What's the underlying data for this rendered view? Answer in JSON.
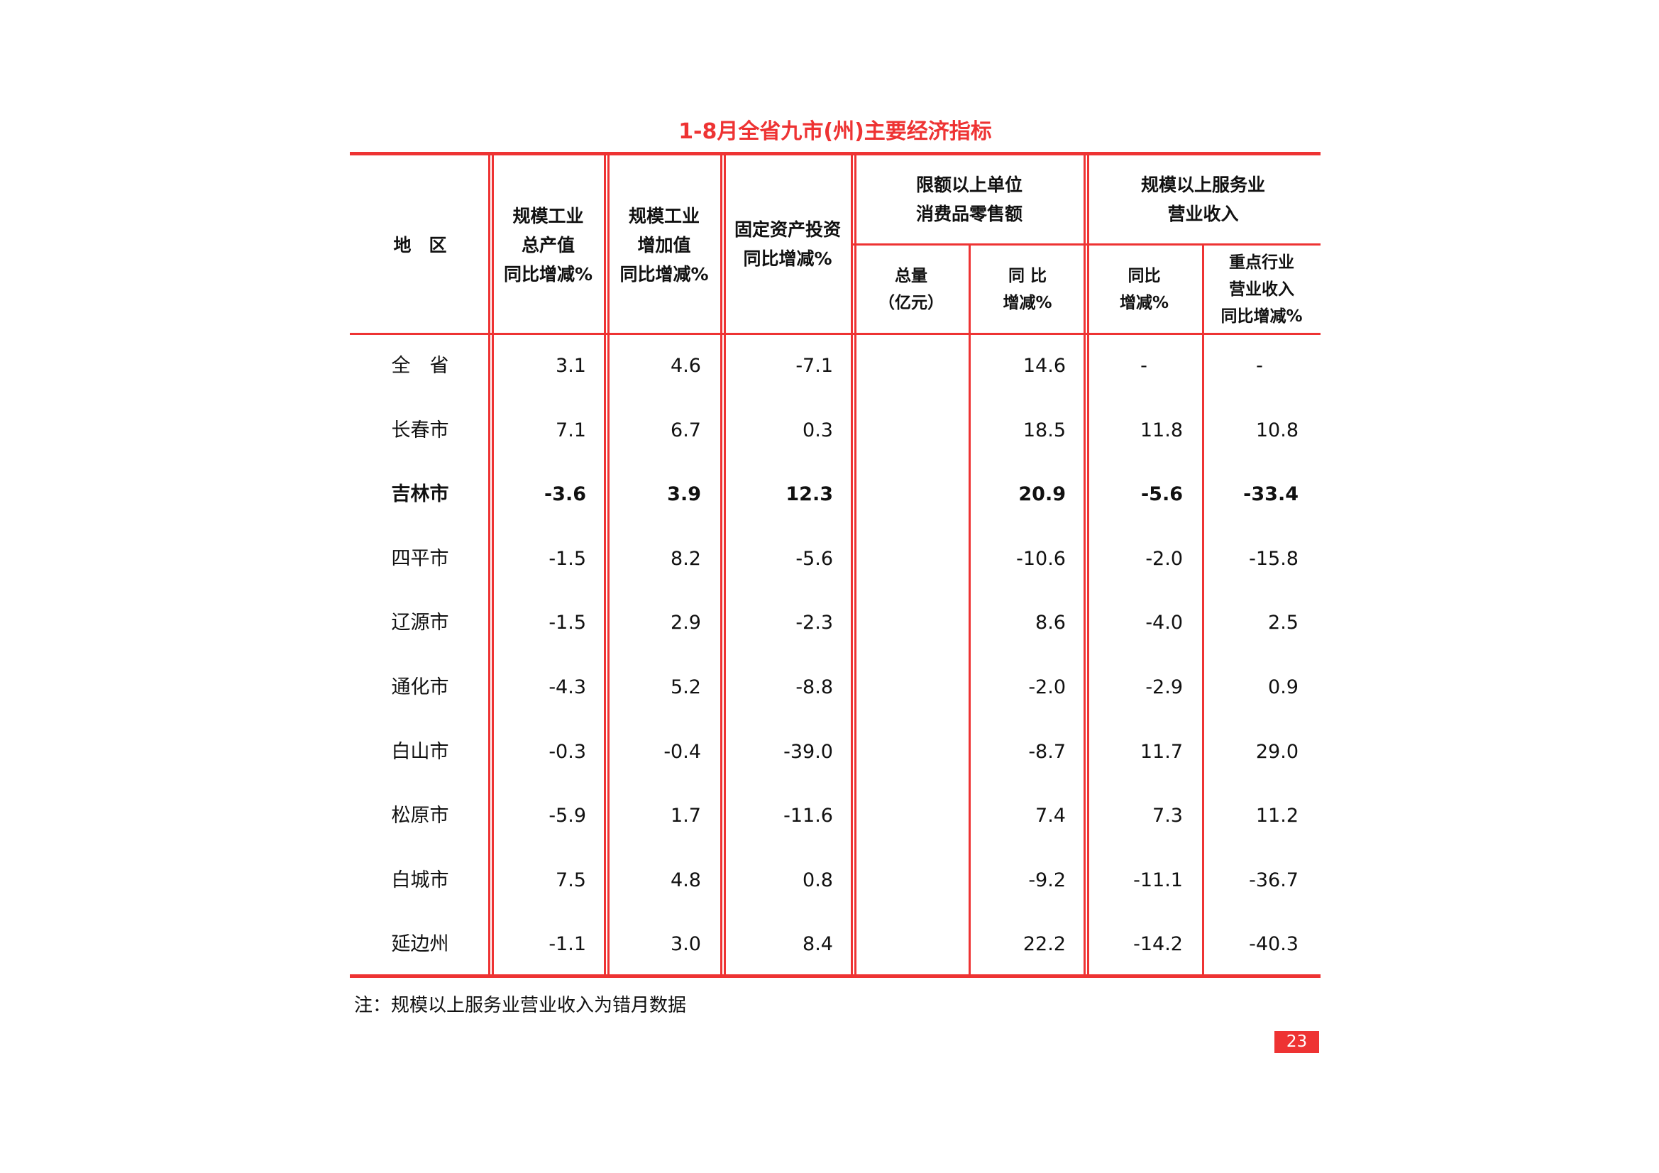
{
  "title": "1-8月全省九市(州)主要经济指标",
  "accent_color": "#ee3333",
  "headers": {
    "region": "地　区",
    "industrial_output": [
      "规模工业",
      "总产值",
      "同比增减%"
    ],
    "industrial_value_added": [
      "规模工业",
      "增加值",
      "同比增减%"
    ],
    "fixed_asset_investment": [
      "固定资产投资",
      "同比增减%"
    ],
    "retail_group": [
      "限额以上单位",
      "消费品零售额"
    ],
    "retail_total": [
      "总量",
      "（亿元）"
    ],
    "retail_yoy": [
      "同 比",
      "增减%"
    ],
    "service_group": [
      "规模以上服务业",
      "营业收入"
    ],
    "service_yoy": [
      "同比",
      "增减%"
    ],
    "service_key_industry": [
      "重点行业",
      "营业收入",
      "同比增减%"
    ]
  },
  "rows": [
    {
      "region": "全　省",
      "values": [
        "3.1",
        "4.6",
        "-7.1",
        "",
        "14.6",
        "-",
        "-"
      ],
      "bold": false
    },
    {
      "region": "长春市",
      "values": [
        "7.1",
        "6.7",
        "0.3",
        "",
        "18.5",
        "11.8",
        "10.8"
      ],
      "bold": false
    },
    {
      "region": "吉林市",
      "values": [
        "-3.6",
        "3.9",
        "12.3",
        "",
        "20.9",
        "-5.6",
        "-33.4"
      ],
      "bold": true
    },
    {
      "region": "四平市",
      "values": [
        "-1.5",
        "8.2",
        "-5.6",
        "",
        "-10.6",
        "-2.0",
        "-15.8"
      ],
      "bold": false
    },
    {
      "region": "辽源市",
      "values": [
        "-1.5",
        "2.9",
        "-2.3",
        "",
        "8.6",
        "-4.0",
        "2.5"
      ],
      "bold": false
    },
    {
      "region": "通化市",
      "values": [
        "-4.3",
        "5.2",
        "-8.8",
        "",
        "-2.0",
        "-2.9",
        "0.9"
      ],
      "bold": false
    },
    {
      "region": "白山市",
      "values": [
        "-0.3",
        "-0.4",
        "-39.0",
        "",
        "-8.7",
        "11.7",
        "29.0"
      ],
      "bold": false
    },
    {
      "region": "松原市",
      "values": [
        "-5.9",
        "1.7",
        "-11.6",
        "",
        "7.4",
        "7.3",
        "11.2"
      ],
      "bold": false
    },
    {
      "region": "白城市",
      "values": [
        "7.5",
        "4.8",
        "0.8",
        "",
        "-9.2",
        "-11.1",
        "-36.7"
      ],
      "bold": false
    },
    {
      "region": "延边州",
      "values": [
        "-1.1",
        "3.0",
        "8.4",
        "",
        "22.2",
        "-14.2",
        "-40.3"
      ],
      "bold": false
    }
  ],
  "note": "注：规模以上服务业营业收入为错月数据",
  "page_number": "23"
}
